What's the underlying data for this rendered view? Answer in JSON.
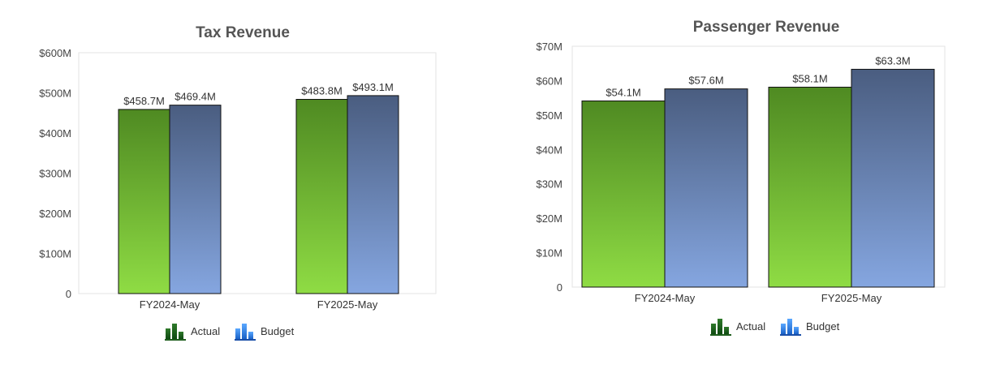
{
  "colors": {
    "actual": "#6fae3a",
    "budget": "#6f8fc8",
    "frame": "#e3e3e3"
  },
  "legend_icons": {
    "actual": "green-bars-icon",
    "budget": "blue-bars-icon"
  },
  "chart_data": [
    {
      "type": "bar",
      "title": "Tax Revenue",
      "categories": [
        "FY2024-May",
        "FY2025-May"
      ],
      "series": [
        {
          "name": "Actual",
          "values": [
            458.7,
            483.8
          ],
          "labels": [
            "$458.7M",
            "$483.8M"
          ]
        },
        {
          "name": "Budget",
          "values": [
            469.4,
            493.1
          ],
          "labels": [
            "$469.4M",
            "$493.1M"
          ]
        }
      ],
      "ylim": [
        0,
        600
      ],
      "yticks": [
        0,
        100,
        200,
        300,
        400,
        500,
        600
      ],
      "ytick_labels": [
        "0",
        "$100M",
        "$200M",
        "$300M",
        "$400M",
        "$500M",
        "$600M"
      ],
      "legend": "bottom"
    },
    {
      "type": "bar",
      "title": "Passenger Revenue",
      "categories": [
        "FY2024-May",
        "FY2025-May"
      ],
      "series": [
        {
          "name": "Actual",
          "values": [
            54.1,
            58.1
          ],
          "labels": [
            "$54.1M",
            "$58.1M"
          ]
        },
        {
          "name": "Budget",
          "values": [
            57.6,
            63.3
          ],
          "labels": [
            "$57.6M",
            "$63.3M"
          ]
        }
      ],
      "ylim": [
        0,
        70
      ],
      "yticks": [
        0,
        10,
        20,
        30,
        40,
        50,
        60,
        70
      ],
      "ytick_labels": [
        "0",
        "$10M",
        "$20M",
        "$30M",
        "$40M",
        "$50M",
        "$60M",
        "$70M"
      ],
      "legend": "bottom"
    }
  ]
}
